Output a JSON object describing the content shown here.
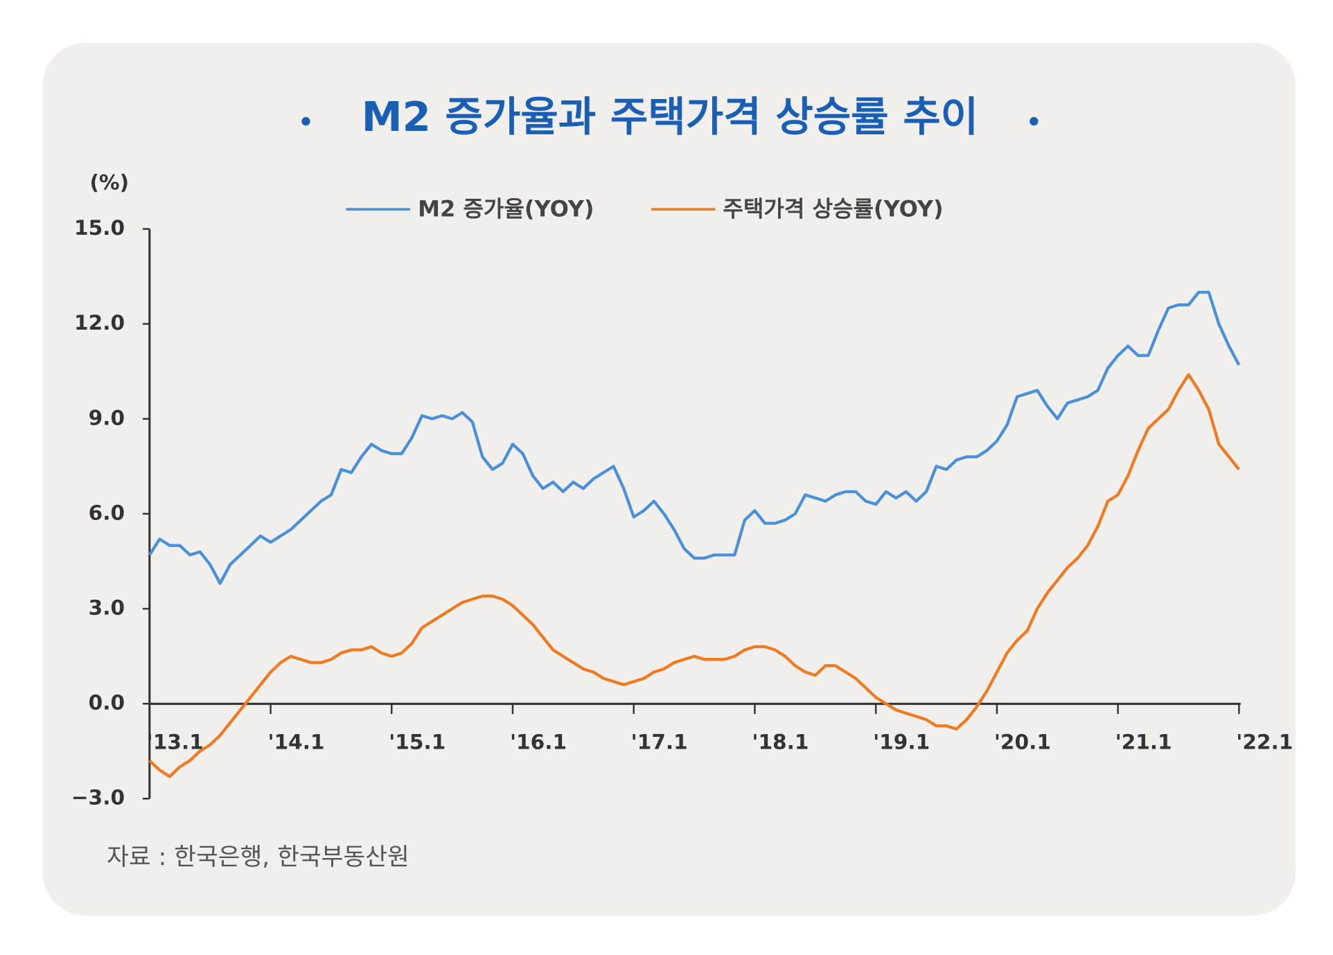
{
  "chart_data": {
    "type": "line",
    "title": "M2 증가율과 주택가격 상승률 추이",
    "y_label": "(%)",
    "source": "자료 : 한국은행, 한국부동산원",
    "categories": [
      "'13.1",
      null,
      null,
      null,
      null,
      null,
      null,
      null,
      null,
      null,
      null,
      null,
      "'14.1",
      null,
      null,
      null,
      null,
      null,
      null,
      null,
      null,
      null,
      null,
      null,
      "'15.1",
      null,
      null,
      null,
      null,
      null,
      null,
      null,
      null,
      null,
      null,
      null,
      "'16.1",
      null,
      null,
      null,
      null,
      null,
      null,
      null,
      null,
      null,
      null,
      null,
      "'17.1",
      null,
      null,
      null,
      null,
      null,
      null,
      null,
      null,
      null,
      null,
      null,
      "'18.1",
      null,
      null,
      null,
      null,
      null,
      null,
      null,
      null,
      null,
      null,
      null,
      "'19.1",
      null,
      null,
      null,
      null,
      null,
      null,
      null,
      null,
      null,
      null,
      null,
      "'20.1",
      null,
      null,
      null,
      null,
      null,
      null,
      null,
      null,
      null,
      null,
      null,
      "'21.1",
      null,
      null,
      null,
      null,
      null,
      null,
      null,
      null,
      null,
      null,
      null,
      "'22.1"
    ],
    "series": [
      {
        "name": "M2 증가율(YOY)",
        "color": "#4a90d9",
        "values": [
          4.7,
          5.2,
          5.0,
          5.0,
          4.7,
          4.8,
          4.4,
          3.8,
          4.4,
          4.7,
          5.0,
          5.3,
          5.1,
          5.3,
          5.5,
          5.8,
          6.1,
          6.4,
          6.6,
          7.4,
          7.3,
          7.8,
          8.2,
          8.0,
          7.9,
          7.9,
          8.4,
          9.1,
          9.0,
          9.1,
          9.0,
          9.2,
          8.9,
          7.8,
          7.4,
          7.6,
          8.2,
          7.9,
          7.2,
          6.8,
          7.0,
          6.7,
          7.0,
          6.8,
          7.1,
          7.3,
          7.5,
          6.8,
          5.9,
          6.1,
          6.4,
          6.0,
          5.5,
          4.9,
          4.6,
          4.6,
          4.7,
          4.7,
          4.7,
          5.8,
          6.1,
          5.7,
          5.7,
          5.8,
          6.0,
          6.6,
          6.5,
          6.4,
          6.6,
          6.7,
          6.7,
          6.4,
          6.3,
          6.7,
          6.5,
          6.7,
          6.4,
          6.7,
          7.5,
          7.4,
          7.7,
          7.8,
          7.8,
          8.0,
          8.3,
          8.8,
          9.7,
          9.8,
          9.9,
          9.4,
          9.0,
          9.5,
          9.6,
          9.7,
          9.9,
          10.6,
          11.0,
          11.3,
          11.0,
          11.0,
          11.8,
          12.5,
          12.6,
          12.6,
          13.0,
          13.0,
          12.0,
          11.3,
          10.7
        ]
      },
      {
        "name": "주택가격 상승률(YOY)",
        "color": "#ee7a22",
        "values": [
          -1.8,
          -2.1,
          -2.3,
          -2.0,
          -1.8,
          -1.5,
          -1.3,
          -1.0,
          -0.6,
          -0.2,
          0.2,
          0.6,
          1.0,
          1.3,
          1.5,
          1.4,
          1.3,
          1.3,
          1.4,
          1.6,
          1.7,
          1.7,
          1.8,
          1.6,
          1.5,
          1.6,
          1.9,
          2.4,
          2.6,
          2.8,
          3.0,
          3.2,
          3.3,
          3.4,
          3.4,
          3.3,
          3.1,
          2.8,
          2.5,
          2.1,
          1.7,
          1.5,
          1.3,
          1.1,
          1.0,
          0.8,
          0.7,
          0.6,
          0.7,
          0.8,
          1.0,
          1.1,
          1.3,
          1.4,
          1.5,
          1.4,
          1.4,
          1.4,
          1.5,
          1.7,
          1.8,
          1.8,
          1.7,
          1.5,
          1.2,
          1.0,
          0.9,
          1.2,
          1.2,
          1.0,
          0.8,
          0.5,
          0.2,
          0.0,
          -0.2,
          -0.3,
          -0.4,
          -0.5,
          -0.7,
          -0.7,
          -0.8,
          -0.5,
          -0.1,
          0.4,
          1.0,
          1.6,
          2.0,
          2.3,
          3.0,
          3.5,
          3.9,
          4.3,
          4.6,
          5.0,
          5.6,
          6.4,
          6.6,
          7.2,
          8.0,
          8.7,
          9.0,
          9.3,
          9.9,
          10.4,
          9.9,
          9.3,
          8.2,
          7.8,
          7.4
        ]
      }
    ],
    "ylim": [
      -3,
      15
    ],
    "yticks": [
      {
        "value": -3,
        "label": "−3.0"
      },
      {
        "value": 0,
        "label": "0.0"
      },
      {
        "value": 3,
        "label": "3.0"
      },
      {
        "value": 6,
        "label": "6.0"
      },
      {
        "value": 9,
        "label": "9.0"
      },
      {
        "value": 12,
        "label": "12.0"
      },
      {
        "value": 15,
        "label": "15.0"
      }
    ],
    "grid": false
  }
}
